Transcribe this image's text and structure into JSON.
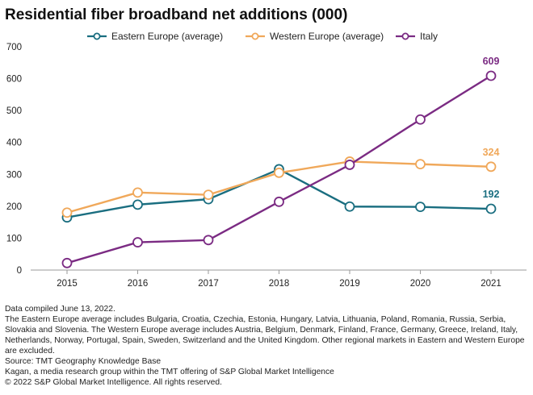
{
  "chart_data": {
    "type": "line",
    "title": "Residential fiber broadband net additions (000)",
    "xlabel": "",
    "ylabel": "",
    "categories": [
      "2015",
      "2016",
      "2017",
      "2018",
      "2019",
      "2020",
      "2021"
    ],
    "ylim": [
      0,
      700
    ],
    "yticks": [
      0,
      100,
      200,
      300,
      400,
      500,
      600,
      700
    ],
    "legend_position": "top",
    "grid": false,
    "series": [
      {
        "name": "Eastern Europe (average)",
        "color": "#1a6e80",
        "values": [
          165,
          205,
          222,
          316,
          199,
          198,
          192
        ],
        "end_label": "192"
      },
      {
        "name": "Western Europe (average)",
        "color": "#f0a85a",
        "values": [
          180,
          243,
          236,
          305,
          340,
          332,
          324
        ],
        "end_label": "324"
      },
      {
        "name": "Italy",
        "color": "#7b2b83",
        "values": [
          22,
          87,
          94,
          214,
          330,
          472,
          609
        ],
        "end_label": "609"
      }
    ]
  },
  "notes": [
    "Data compiled June 13, 2022.",
    "The Eastern Europe average includes Bulgaria, Croatia, Czechia, Estonia, Hungary, Latvia, Lithuania, Poland, Romania, Russia, Serbia, Slovakia and Slovenia. The Western Europe average includes Austria, Belgium, Denmark, Finland, France, Germany, Greece, Ireland, Italy, Netherlands, Norway, Portugal, Spain, Sweden, Switzerland and the United Kingdom. Other regional markets in Eastern and Western Europe are excluded.",
    "Source: TMT Geography Knowledge Base",
    "Kagan, a media research group within the TMT offering of S&P Global Market Intelligence",
    "© 2022 S&P Global Market Intelligence. All rights reserved."
  ]
}
